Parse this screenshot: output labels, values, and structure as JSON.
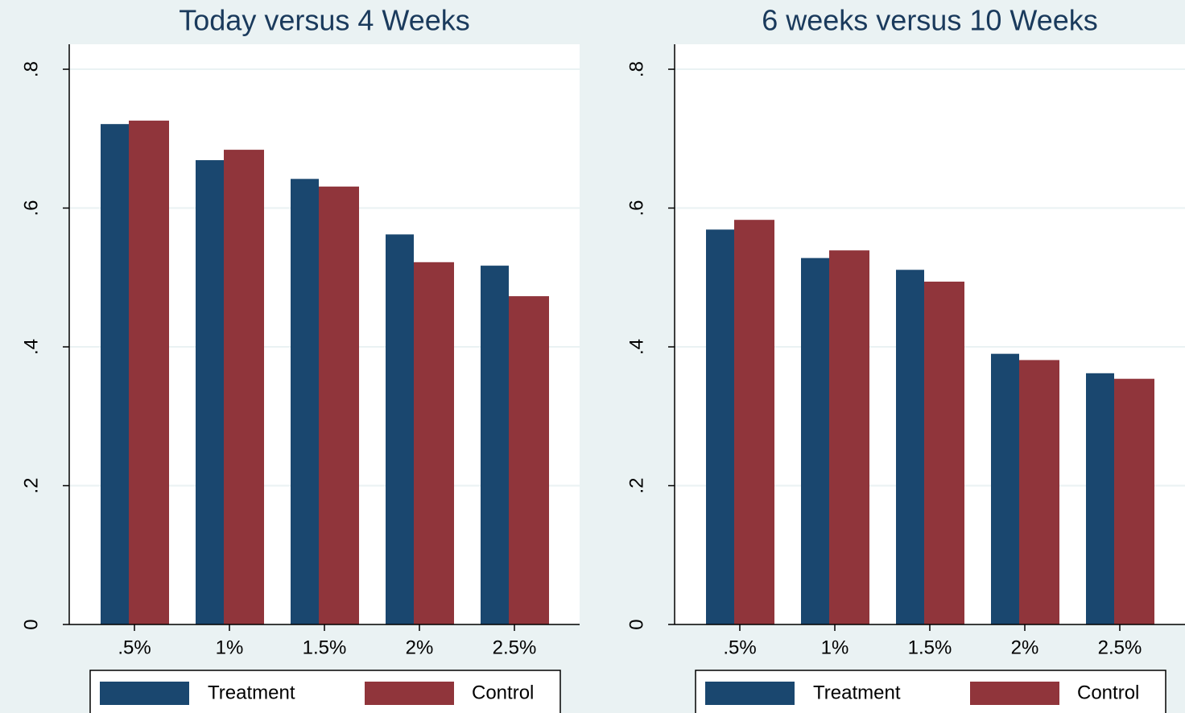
{
  "chart_data": [
    {
      "type": "bar",
      "title": "Today versus 4 Weeks",
      "categories": [
        ".5%",
        "1%",
        "1.5%",
        "2%",
        "2.5%"
      ],
      "series": [
        {
          "name": "Treatment",
          "color": "#1a476f",
          "values": [
            0.721,
            0.669,
            0.642,
            0.562,
            0.517
          ]
        },
        {
          "name": "Control",
          "color": "#90353b",
          "values": [
            0.726,
            0.684,
            0.631,
            0.522,
            0.473
          ]
        }
      ],
      "ylim": [
        0,
        0.836
      ],
      "yticks": [
        0,
        {
          "value": 0.2,
          "label": ".2"
        },
        {
          "value": 0.4,
          "label": ".4"
        },
        {
          "value": 0.6,
          "label": ".6"
        },
        {
          "value": 0.8,
          "label": ".8"
        }
      ],
      "grid": true
    },
    {
      "type": "bar",
      "title": "6 weeks versus 10 Weeks",
      "categories": [
        ".5%",
        "1%",
        "1.5%",
        "2%",
        "2.5%"
      ],
      "series": [
        {
          "name": "Treatment",
          "color": "#1a476f",
          "values": [
            0.569,
            0.528,
            0.511,
            0.39,
            0.362
          ]
        },
        {
          "name": "Control",
          "color": "#90353b",
          "values": [
            0.583,
            0.539,
            0.494,
            0.381,
            0.354
          ]
        }
      ],
      "ylim": [
        0,
        0.836
      ],
      "yticks": [
        0,
        {
          "value": 0.2,
          "label": ".2"
        },
        {
          "value": 0.4,
          "label": ".4"
        },
        {
          "value": 0.6,
          "label": ".6"
        },
        {
          "value": 0.8,
          "label": ".8"
        }
      ],
      "grid": true
    }
  ]
}
